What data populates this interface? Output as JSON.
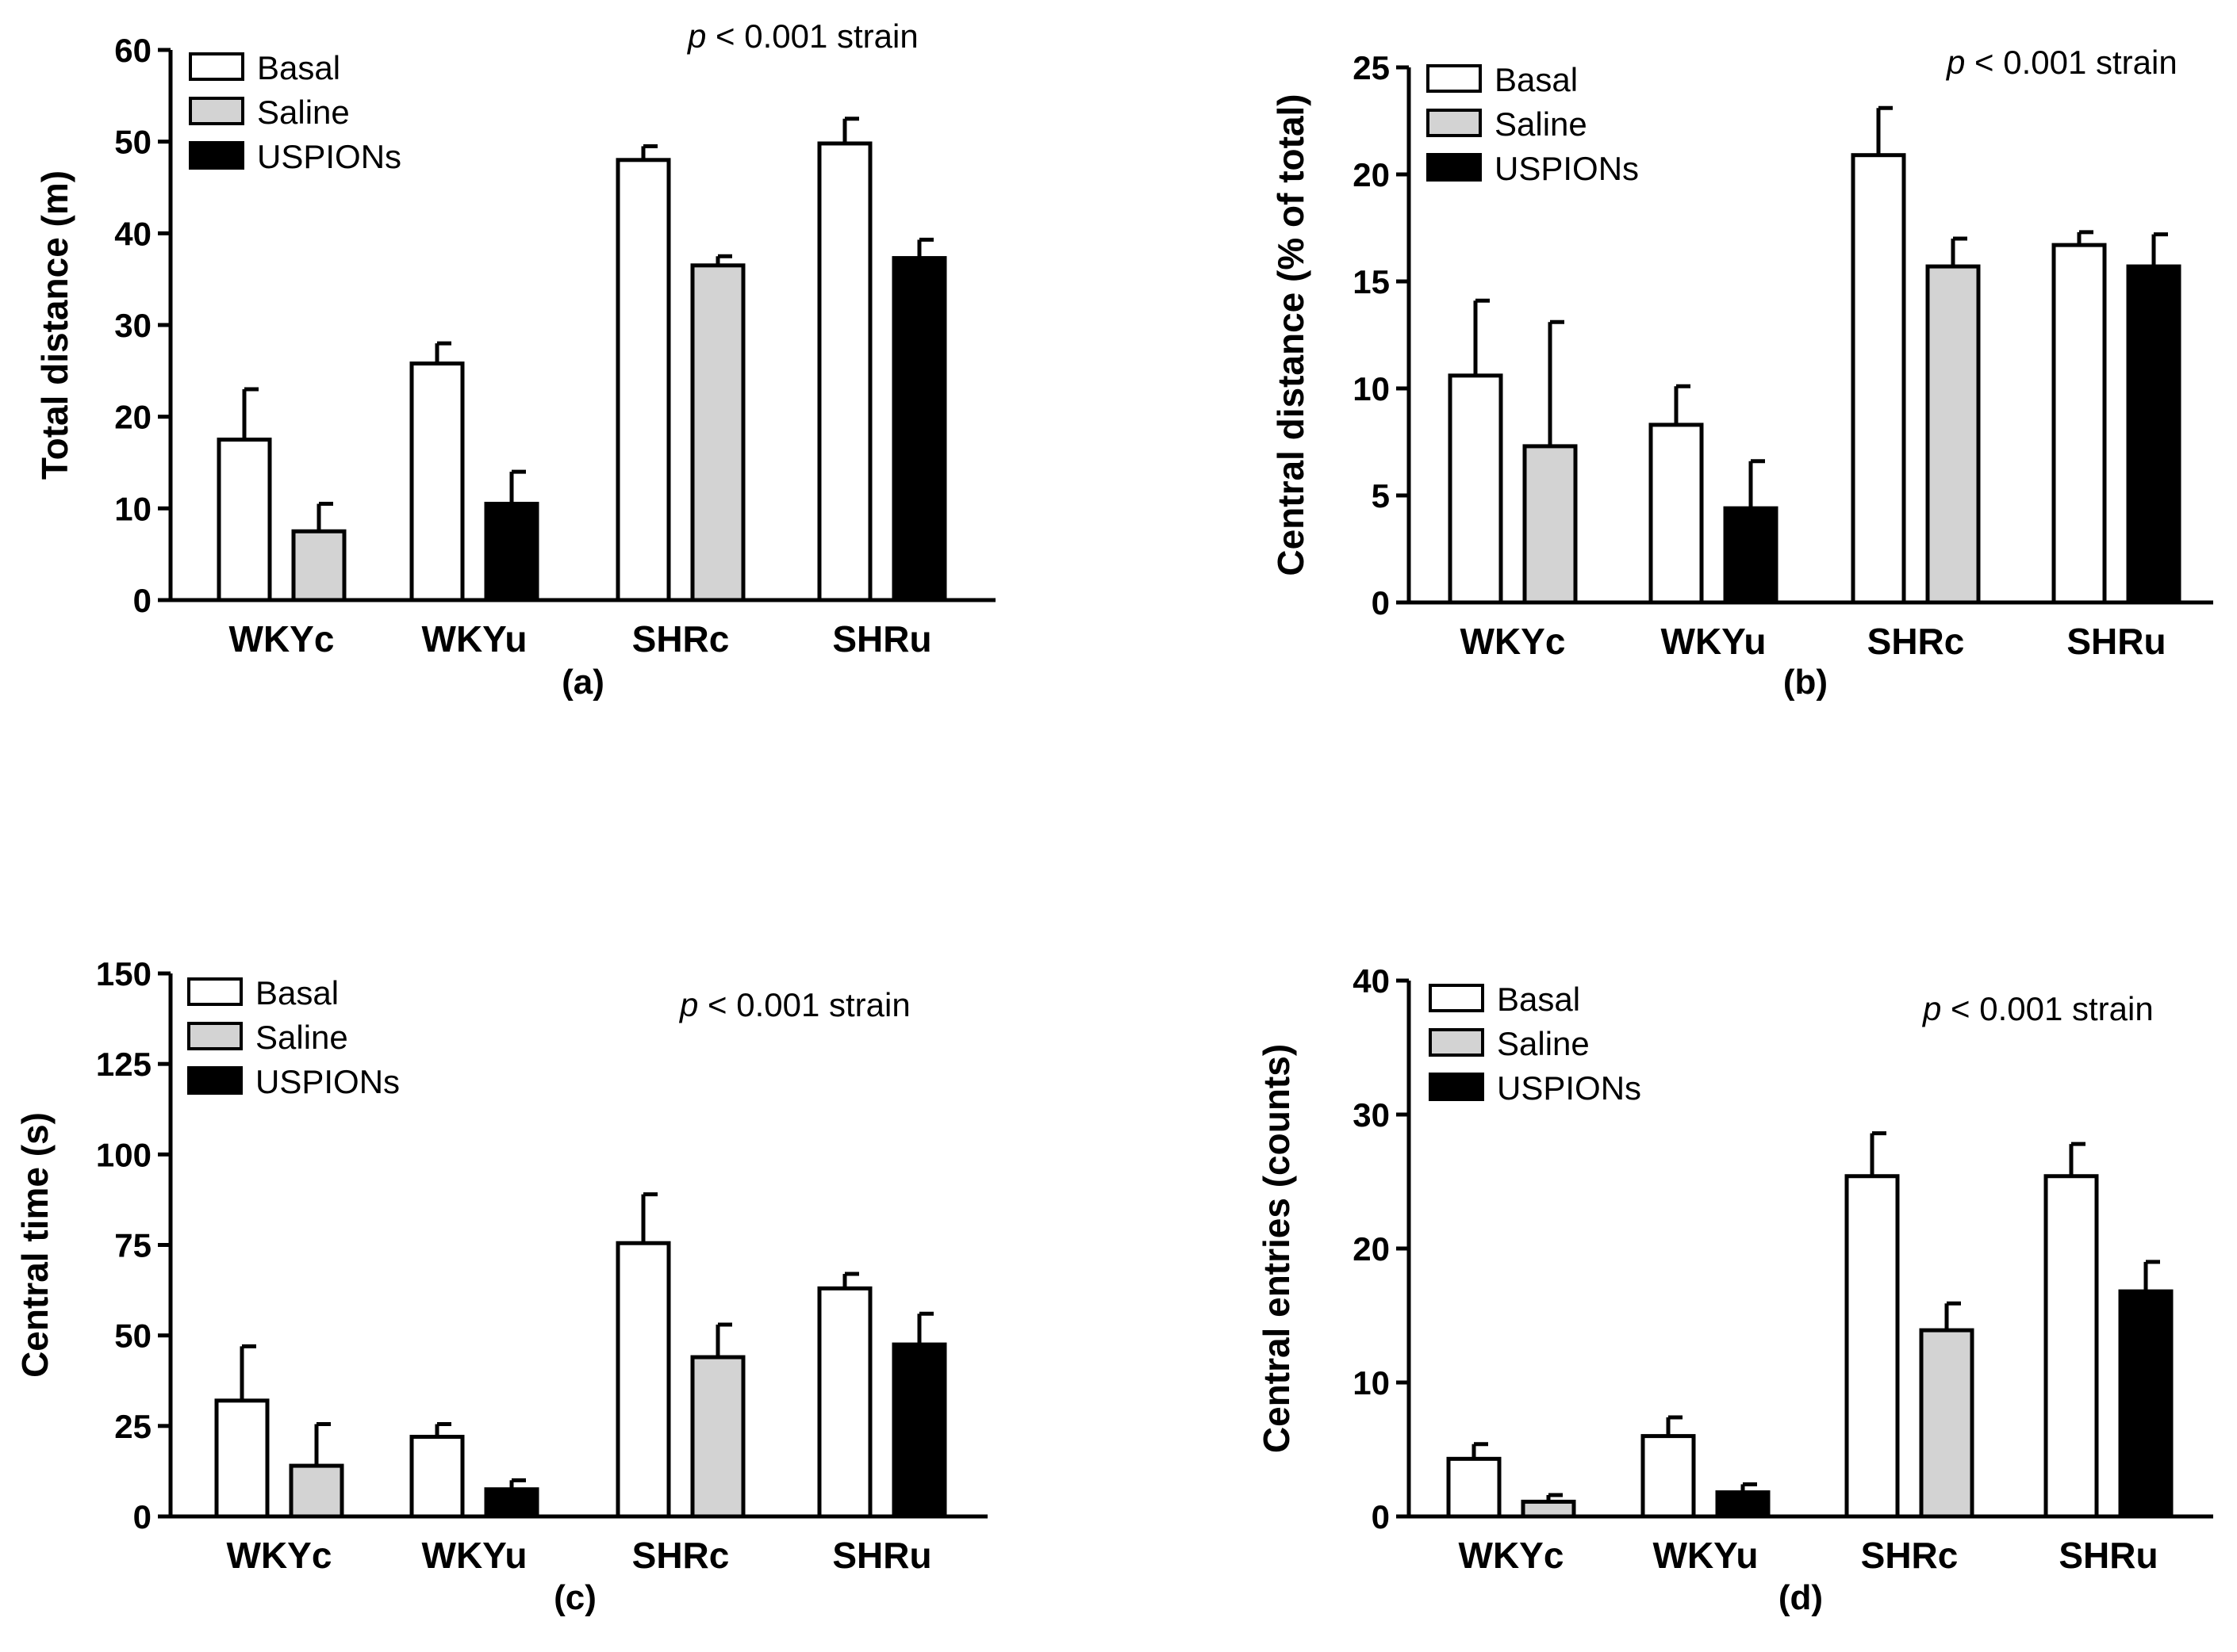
{
  "colors": {
    "basal": "#ffffff",
    "saline": "#d3d3d3",
    "uspions": "#000000",
    "stroke": "#000000"
  },
  "legend_labels": [
    "Basal",
    "Saline",
    "USPIONs"
  ],
  "chart_data": [
    {
      "type": "bar",
      "panel_label": "(a)",
      "title": "",
      "ylabel": "Total distance (m)",
      "xlabel": "",
      "ylim": [
        0,
        60
      ],
      "yticks": [
        0,
        10,
        20,
        30,
        40,
        50,
        60
      ],
      "annotation_p": "p",
      "annotation_rest": " < 0.001 strain",
      "legend": "top-left",
      "groups": [
        {
          "category": "WKYc",
          "bars": [
            {
              "series": "Basal",
              "value": 17.5,
              "error": 5.5
            },
            {
              "series": "Saline",
              "value": 7.5,
              "error": 3.0
            }
          ]
        },
        {
          "category": "WKYu",
          "bars": [
            {
              "series": "Basal",
              "value": 25.8,
              "error": 2.2
            },
            {
              "series": "USPIONs",
              "value": 10.5,
              "error": 3.5
            }
          ]
        },
        {
          "category": "SHRc",
          "bars": [
            {
              "series": "Basal",
              "value": 48.0,
              "error": 1.5
            },
            {
              "series": "Saline",
              "value": 36.5,
              "error": 1.0
            }
          ]
        },
        {
          "category": "SHRu",
          "bars": [
            {
              "series": "Basal",
              "value": 49.8,
              "error": 2.7
            },
            {
              "series": "USPIONs",
              "value": 37.3,
              "error": 2.0
            }
          ]
        }
      ]
    },
    {
      "type": "bar",
      "panel_label": "(b)",
      "title": "",
      "ylabel": "Central distance (% of total)",
      "xlabel": "",
      "ylim": [
        0,
        25
      ],
      "yticks": [
        0,
        5,
        10,
        15,
        20,
        25
      ],
      "annotation_p": "p",
      "annotation_rest": " < 0.001 strain",
      "legend": "top-left",
      "groups": [
        {
          "category": "WKYc",
          "bars": [
            {
              "series": "Basal",
              "value": 10.6,
              "error": 3.5
            },
            {
              "series": "Saline",
              "value": 7.3,
              "error": 5.8
            }
          ]
        },
        {
          "category": "WKYu",
          "bars": [
            {
              "series": "Basal",
              "value": 8.3,
              "error": 1.8
            },
            {
              "series": "USPIONs",
              "value": 4.4,
              "error": 2.2
            }
          ]
        },
        {
          "category": "SHRc",
          "bars": [
            {
              "series": "Basal",
              "value": 20.9,
              "error": 2.2
            },
            {
              "series": "Saline",
              "value": 15.7,
              "error": 1.3
            }
          ]
        },
        {
          "category": "SHRu",
          "bars": [
            {
              "series": "Basal",
              "value": 16.7,
              "error": 0.6
            },
            {
              "series": "USPIONs",
              "value": 15.7,
              "error": 1.5
            }
          ]
        }
      ]
    },
    {
      "type": "bar",
      "panel_label": "(c)",
      "title": "",
      "ylabel": "Central time (s)",
      "xlabel": "",
      "ylim": [
        0,
        150
      ],
      "yticks": [
        0,
        25,
        50,
        75,
        100,
        125,
        150
      ],
      "annotation_p": "p",
      "annotation_rest": " < 0.001 strain",
      "legend": "top-left",
      "groups": [
        {
          "category": "WKYc",
          "bars": [
            {
              "series": "Basal",
              "value": 32,
              "error": 15
            },
            {
              "series": "Saline",
              "value": 14,
              "error": 11.5
            }
          ]
        },
        {
          "category": "WKYu",
          "bars": [
            {
              "series": "Basal",
              "value": 22,
              "error": 3.5
            },
            {
              "series": "USPIONs",
              "value": 7.5,
              "error": 2.5
            }
          ]
        },
        {
          "category": "SHRc",
          "bars": [
            {
              "series": "Basal",
              "value": 75.5,
              "error": 13.5
            },
            {
              "series": "Saline",
              "value": 44,
              "error": 9
            }
          ]
        },
        {
          "category": "SHRu",
          "bars": [
            {
              "series": "Basal",
              "value": 63,
              "error": 4
            },
            {
              "series": "USPIONs",
              "value": 47.5,
              "error": 8.5
            }
          ]
        }
      ]
    },
    {
      "type": "bar",
      "panel_label": "(d)",
      "title": "",
      "ylabel": "Central entries (counts)",
      "xlabel": "",
      "ylim": [
        0,
        40
      ],
      "yticks": [
        0,
        10,
        20,
        30,
        40
      ],
      "annotation_p": "p",
      "annotation_rest": " < 0.001 strain",
      "legend": "top-left",
      "groups": [
        {
          "category": "WKYc",
          "bars": [
            {
              "series": "Basal",
              "value": 4.3,
              "error": 1.1
            },
            {
              "series": "Saline",
              "value": 1.1,
              "error": 0.5
            }
          ]
        },
        {
          "category": "WKYu",
          "bars": [
            {
              "series": "Basal",
              "value": 6.0,
              "error": 1.4
            },
            {
              "series": "USPIONs",
              "value": 1.8,
              "error": 0.6
            }
          ]
        },
        {
          "category": "SHRc",
          "bars": [
            {
              "series": "Basal",
              "value": 25.4,
              "error": 3.2
            },
            {
              "series": "Saline",
              "value": 13.9,
              "error": 2.0
            }
          ]
        },
        {
          "category": "SHRu",
          "bars": [
            {
              "series": "Basal",
              "value": 25.4,
              "error": 2.4
            },
            {
              "series": "USPIONs",
              "value": 16.8,
              "error": 2.2
            }
          ]
        }
      ]
    }
  ]
}
